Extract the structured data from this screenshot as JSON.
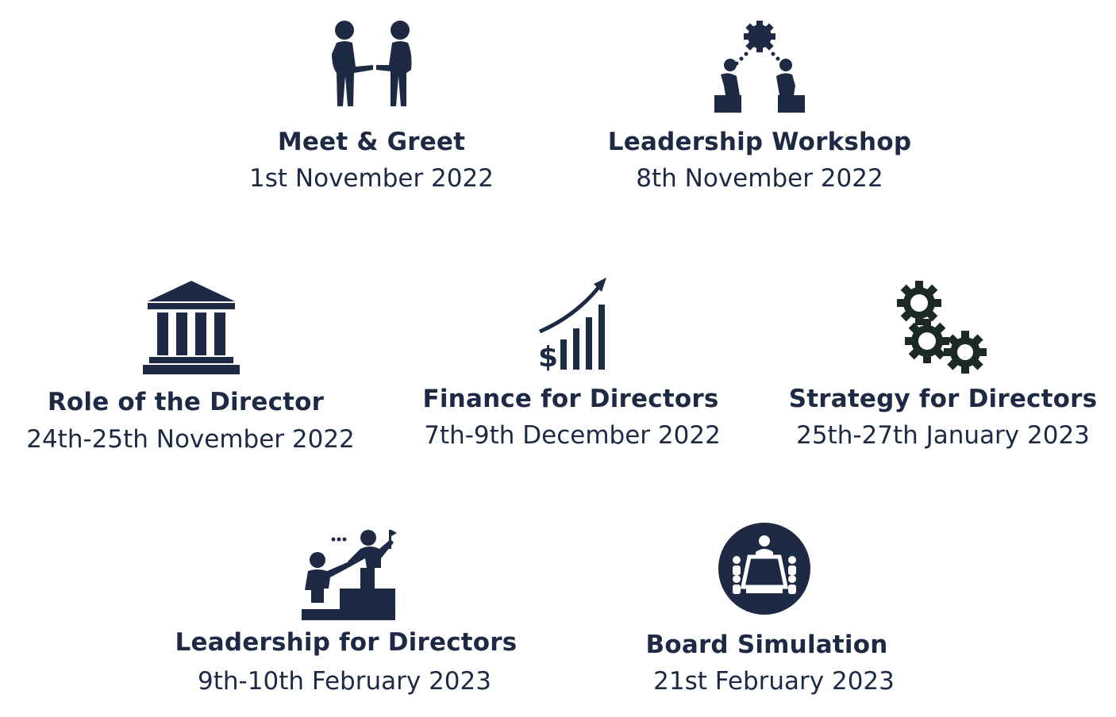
{
  "colors": {
    "navy": "#1e2a44",
    "gear_dark": "#1b2a26",
    "background": "#ffffff"
  },
  "events": [
    {
      "id": "meet-greet",
      "icon": "handshake-people-icon",
      "title": "Meet & Greet",
      "date": "1st November 2022"
    },
    {
      "id": "leadership-workshop",
      "icon": "workshop-gear-people-icon",
      "title": "Leadership Workshop",
      "date": "8th November 2022"
    },
    {
      "id": "role-director",
      "icon": "institution-building-icon",
      "title": "Role of the Director",
      "date": "24th-25th November 2022"
    },
    {
      "id": "finance-directors",
      "icon": "finance-growth-chart-icon",
      "title": "Finance for Directors",
      "date": "7th-9th December 2022"
    },
    {
      "id": "strategy-directors",
      "icon": "strategy-gears-icon",
      "title": "Strategy for Directors",
      "date": "25th-27th January 2023"
    },
    {
      "id": "leadership-directors",
      "icon": "climbing-stairs-leader-icon",
      "title": "Leadership for Directors",
      "date": "9th-10th February 2023"
    },
    {
      "id": "board-simulation",
      "icon": "boardroom-table-icon",
      "title": "Board Simulation",
      "date": "21st February 2023"
    }
  ]
}
